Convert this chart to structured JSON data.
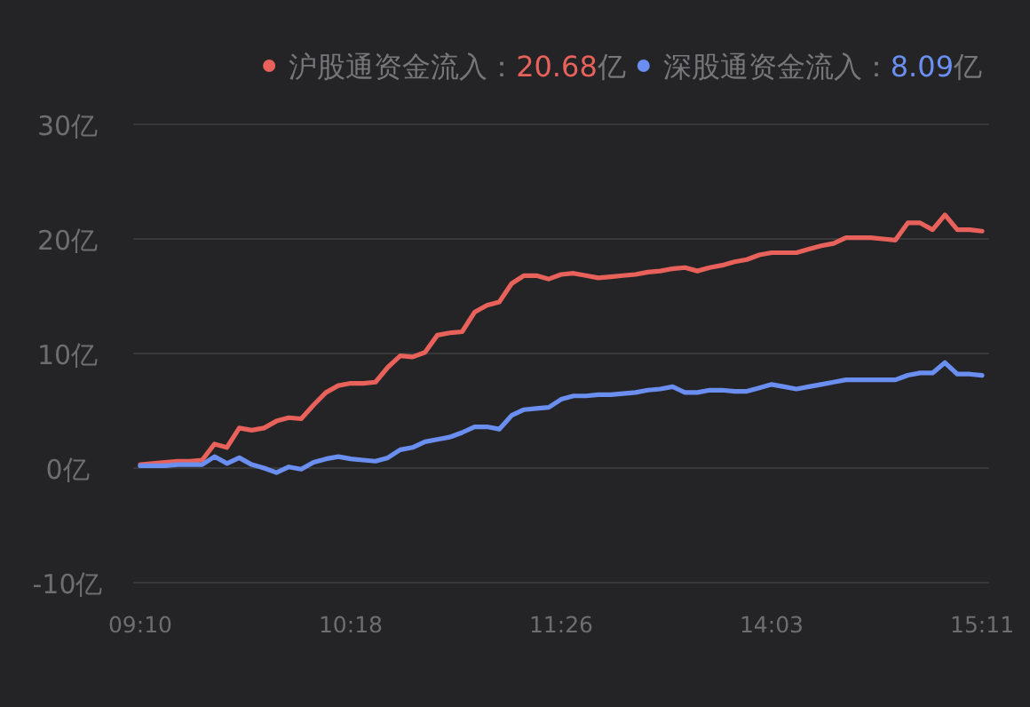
{
  "chart_data": {
    "type": "line",
    "legend": "top right",
    "grid": "y",
    "marker": "none",
    "line_style": "solid",
    "categories": [
      "09:10",
      null,
      null,
      null,
      null,
      null,
      null,
      null,
      null,
      null,
      null,
      null,
      null,
      null,
      null,
      null,
      null,
      "10:18",
      null,
      null,
      null,
      null,
      null,
      null,
      null,
      null,
      null,
      null,
      null,
      null,
      null,
      null,
      null,
      null,
      "11:26",
      null,
      null,
      null,
      null,
      null,
      null,
      null,
      null,
      null,
      null,
      null,
      null,
      null,
      null,
      null,
      null,
      "14:03",
      null,
      null,
      null,
      null,
      null,
      null,
      null,
      null,
      null,
      null,
      null,
      null,
      null,
      null,
      null,
      null,
      "15:11"
    ],
    "ylim": [
      -10,
      30
    ],
    "yticks": [
      {
        "value": -10,
        "label": "-10亿"
      },
      {
        "value": 0,
        "label": "0亿"
      },
      {
        "value": 10,
        "label": "10亿"
      },
      {
        "value": 20,
        "label": "20亿"
      },
      {
        "value": 30,
        "label": "30亿"
      }
    ],
    "annotations": [
      "20.68亿",
      "8.09亿"
    ],
    "series": [
      {
        "name": "沪股通资金流入：",
        "color": "#e8615a",
        "values": [
          0.3,
          0.4,
          0.5,
          0.6,
          0.6,
          0.7,
          2.1,
          1.8,
          3.5,
          3.3,
          3.5,
          4.1,
          4.4,
          4.3,
          5.5,
          6.6,
          7.2,
          7.4,
          7.4,
          7.5,
          8.8,
          9.8,
          9.7,
          10.1,
          11.6,
          11.8,
          11.9,
          13.6,
          14.2,
          14.5,
          16.1,
          16.8,
          16.8,
          16.5,
          16.9,
          17.0,
          16.8,
          16.6,
          16.7,
          16.8,
          16.9,
          17.1,
          17.2,
          17.4,
          17.5,
          17.2,
          17.5,
          17.7,
          18.0,
          18.2,
          18.6,
          18.8,
          18.8,
          18.8,
          19.1,
          19.4,
          19.6,
          20.1,
          20.1,
          20.1,
          20.0,
          19.9,
          21.4,
          21.4,
          20.8,
          22.1,
          20.8,
          20.8,
          20.68
        ]
      },
      {
        "name": "深股通资金流入：",
        "color": "#6b8ff0",
        "values": [
          0.2,
          0.2,
          0.2,
          0.3,
          0.3,
          0.3,
          1.0,
          0.4,
          0.9,
          0.3,
          0.0,
          -0.4,
          0.1,
          -0.1,
          0.5,
          0.8,
          1.0,
          0.8,
          0.7,
          0.6,
          0.9,
          1.6,
          1.8,
          2.3,
          2.5,
          2.7,
          3.1,
          3.6,
          3.6,
          3.4,
          4.6,
          5.1,
          5.2,
          5.3,
          6.0,
          6.3,
          6.3,
          6.4,
          6.4,
          6.5,
          6.6,
          6.8,
          6.9,
          7.1,
          6.6,
          6.6,
          6.8,
          6.8,
          6.7,
          6.7,
          7.0,
          7.3,
          7.1,
          6.9,
          7.1,
          7.3,
          7.5,
          7.7,
          7.7,
          7.7,
          7.7,
          7.7,
          8.1,
          8.3,
          8.3,
          9.2,
          8.2,
          8.2,
          8.09
        ]
      }
    ]
  }
}
